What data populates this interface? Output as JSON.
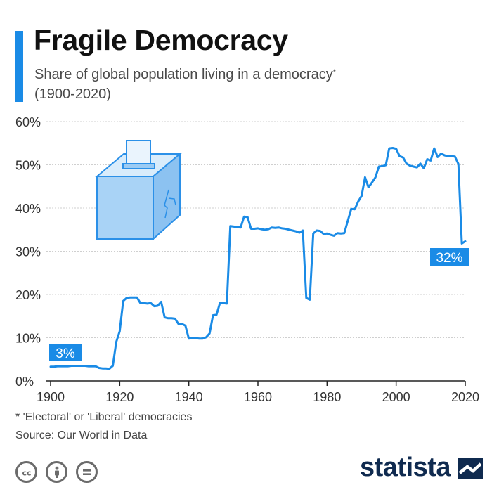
{
  "header": {
    "title": "Fragile Democracy",
    "subtitle_line1": "Share of global population living in a democracy",
    "subtitle_star": "*",
    "subtitle_line2": "(1900-2020)"
  },
  "footer": {
    "footnote": "* 'Electoral' or 'Liberal' democracies",
    "source": "Source: Our World in Data",
    "brand": "statista"
  },
  "icons": {
    "ballot_box": "ballot-box-icon",
    "license_cc": "cc-icon",
    "license_by": "attribution-icon",
    "license_nd": "no-derivatives-icon",
    "logo_mark": "statista-logo-mark"
  },
  "colors": {
    "accent": "#1a8be6",
    "line": "#1a8be6",
    "label_bg": "#1a8be6",
    "grid": "#cfcfcf",
    "brand": "#0f2a4f"
  },
  "chart_data": {
    "type": "line",
    "title": "Fragile Democracy",
    "subtitle": "Share of global population living in a democracy* (1900-2020)",
    "xlabel": "",
    "ylabel": "",
    "xlim": [
      1900,
      2020
    ],
    "ylim": [
      0,
      60
    ],
    "x_ticks": [
      "1900",
      "1920",
      "1940",
      "1960",
      "1980",
      "2000",
      "2020"
    ],
    "y_ticks": [
      "0%",
      "10%",
      "20%",
      "30%",
      "40%",
      "50%",
      "60%"
    ],
    "grid": true,
    "x": [
      1900,
      1901,
      1902,
      1903,
      1904,
      1905,
      1906,
      1907,
      1908,
      1909,
      1910,
      1911,
      1912,
      1913,
      1914,
      1915,
      1916,
      1917,
      1918,
      1919,
      1920,
      1921,
      1922,
      1923,
      1924,
      1925,
      1926,
      1927,
      1928,
      1929,
      1930,
      1931,
      1932,
      1933,
      1934,
      1935,
      1936,
      1937,
      1938,
      1939,
      1940,
      1941,
      1942,
      1943,
      1944,
      1945,
      1946,
      1947,
      1948,
      1949,
      1950,
      1951,
      1952,
      1953,
      1954,
      1955,
      1956,
      1957,
      1958,
      1959,
      1960,
      1961,
      1962,
      1963,
      1964,
      1965,
      1966,
      1967,
      1968,
      1969,
      1970,
      1971,
      1972,
      1973,
      1974,
      1975,
      1976,
      1977,
      1978,
      1979,
      1980,
      1981,
      1982,
      1983,
      1984,
      1985,
      1986,
      1987,
      1988,
      1989,
      1990,
      1991,
      1992,
      1993,
      1994,
      1995,
      1996,
      1997,
      1998,
      1999,
      2000,
      2001,
      2002,
      2003,
      2004,
      2005,
      2006,
      2007,
      2008,
      2009,
      2010,
      2011,
      2012,
      2013,
      2014,
      2015,
      2016,
      2017,
      2018,
      2019,
      2020
    ],
    "series": [
      {
        "values": [
          3.3,
          3.3,
          3.4,
          3.4,
          3.4,
          3.4,
          3.5,
          3.5,
          3.5,
          3.5,
          3.5,
          3.4,
          3.4,
          3.4,
          3.0,
          2.9,
          2.9,
          2.8,
          3.5,
          9.0,
          11.5,
          18.5,
          19.2,
          19.3,
          19.3,
          19.3,
          18.0,
          18.0,
          17.9,
          18.0,
          17.3,
          17.4,
          18.3,
          14.7,
          14.5,
          14.5,
          14.4,
          13.2,
          13.2,
          12.8,
          9.8,
          9.9,
          9.9,
          9.8,
          9.8,
          10.1,
          11.0,
          15.2,
          15.3,
          18.0,
          18.0,
          17.9,
          35.8,
          35.7,
          35.6,
          35.5,
          38.0,
          37.9,
          35.2,
          35.2,
          35.3,
          35.1,
          35.0,
          35.1,
          35.5,
          35.4,
          35.5,
          35.3,
          35.2,
          35.0,
          34.8,
          34.6,
          34.3,
          34.8,
          19.2,
          18.8,
          34.1,
          34.8,
          34.7,
          34.0,
          34.1,
          33.8,
          33.6,
          34.2,
          34.1,
          34.2,
          37.0,
          39.8,
          39.7,
          41.5,
          42.8,
          47.1,
          44.8,
          45.9,
          47.1,
          49.6,
          49.7,
          49.9,
          53.8,
          53.9,
          53.7,
          52.0,
          51.7,
          50.3,
          49.8,
          49.6,
          49.4,
          50.3,
          49.2,
          51.3,
          51.0,
          53.8,
          51.8,
          52.6,
          52.2,
          52.0,
          52.0,
          51.9,
          50.2,
          31.8,
          32.3
        ]
      }
    ],
    "annotations": [
      {
        "text": "3%",
        "x": 1900
      },
      {
        "text": "32%",
        "x": 2020
      }
    ]
  }
}
